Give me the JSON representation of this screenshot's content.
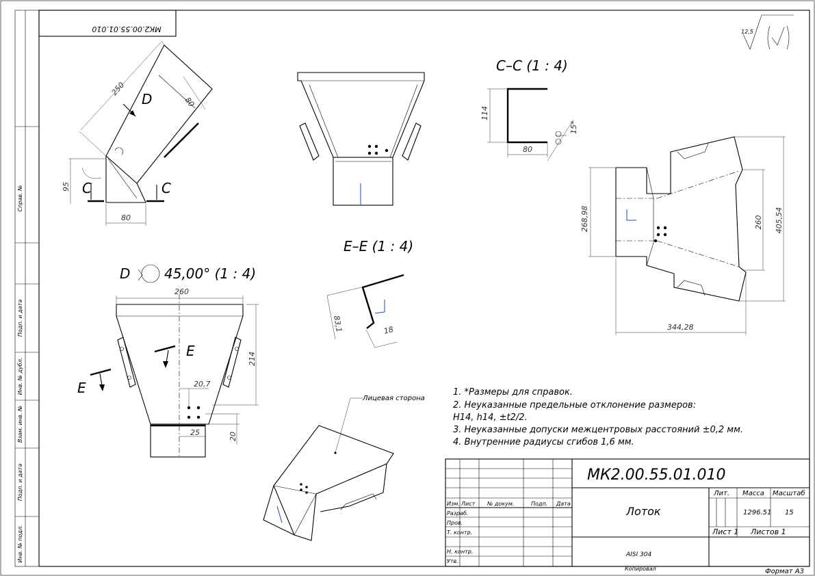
{
  "document": {
    "number": "МК2.00.55.01.010",
    "number_mirrored": "МК2.00.55.01.010",
    "title": "Лоток",
    "material": "AISI 304",
    "mass": "1296.51",
    "scale": "15",
    "sheet": "Лист 1",
    "sheets": "Листов 1",
    "format": "Формат А3",
    "copied": "Копировал",
    "roughness": "12,5"
  },
  "title_block": {
    "headers": {
      "izm": "Изм.",
      "list": "Лист",
      "doc_no": "№ докум.",
      "sign": "Подп.",
      "date": "Дата",
      "lit": "Лит.",
      "massa": "Масса",
      "masshtab": "Масштаб"
    },
    "roles": [
      "Разраб.",
      "Пров.",
      "Т. контр.",
      "Н. контр.",
      "Утв."
    ]
  },
  "side_strip": [
    "Справ. №",
    "Подп. и дата",
    "Инв. № дубл.",
    "Взам. инв. №",
    "Подп. и дата",
    "Инв. № подл."
  ],
  "views": {
    "section_cc": "С–С (1 : 4)",
    "section_ee": "Е–Е (1 : 4)",
    "view_d": "D",
    "view_d_params": "45,00° (1 : 4)",
    "marker_d": "D",
    "marker_c": "С",
    "marker_e": "Е",
    "face_side": "Лицевая сторона"
  },
  "dimensions": {
    "top_250": "250",
    "top_80a": "80",
    "top_95": "95",
    "top_80b": "80",
    "cc_114": "114",
    "cc_80": "80",
    "cc_15": "15*",
    "ee_83": "83,1",
    "ee_18": "18",
    "d_260": "260",
    "d_214": "214",
    "d_207": "20,7",
    "d_25": "25",
    "d_20": "20",
    "flat_268": "268,98",
    "flat_260": "260",
    "flat_405": "405,54",
    "flat_344": "344,28"
  },
  "notes": [
    "1.   *Размеры для справок.",
    "2.   Неуказанные предельные отклонение размеров:",
    "H14, h14, ±t2/2.",
    "3.   Неуказанные допуски межцентровых расстояний ±0,2 мм.",
    "4.   Внутренние радиусы сгибов 1,6 мм."
  ]
}
